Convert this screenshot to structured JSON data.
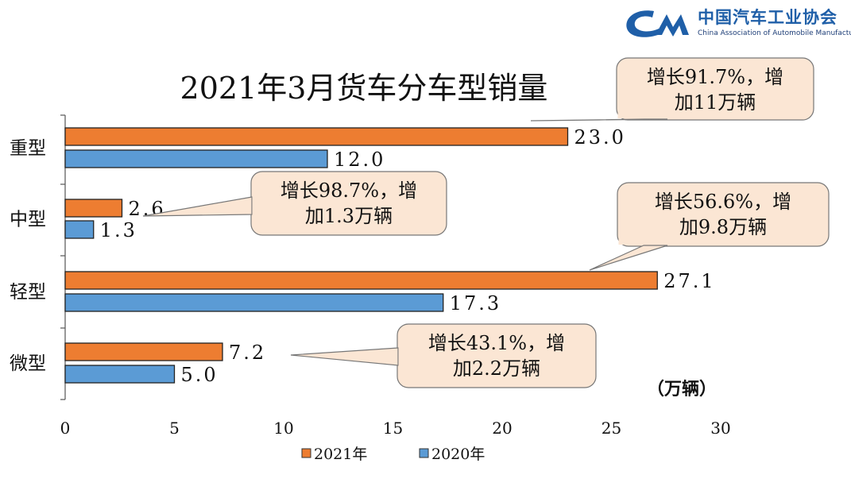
{
  "logo": {
    "name_cn": "中国汽车工业协会",
    "name_en": "China Association of Automobile Manufacturers",
    "brand_color": "#1f5fa8"
  },
  "chart_data": {
    "type": "bar",
    "orientation": "horizontal",
    "title": "2021年3月货车分车型销量",
    "categories": [
      "重型",
      "中型",
      "轻型",
      "微型"
    ],
    "series": [
      {
        "name": "2021年",
        "color": "#ed7d31",
        "values": [
          23.0,
          2.6,
          27.1,
          7.2
        ],
        "labels": [
          "23.0",
          "2.6",
          "27.1",
          "7.2"
        ]
      },
      {
        "name": "2020年",
        "color": "#5b9bd5",
        "values": [
          12.0,
          1.3,
          17.3,
          5.0
        ],
        "labels": [
          "12.0",
          "1.3",
          "17.3",
          "5.0"
        ]
      }
    ],
    "unit": "（万辆）",
    "xlim": [
      0,
      30
    ],
    "xticks": [
      0,
      5,
      10,
      15,
      20,
      25,
      30
    ],
    "grid": false,
    "legend_position": "bottom",
    "annotations": [
      {
        "category": "重型",
        "lines": [
          "增长91.7%，增",
          "加11万辆"
        ]
      },
      {
        "category": "中型",
        "lines": [
          "增长98.7%，增",
          "加1.3万辆"
        ]
      },
      {
        "category": "轻型",
        "lines": [
          "增长56.6%，增",
          "加9.8万辆"
        ]
      },
      {
        "category": "微型",
        "lines": [
          "增长43.1%，增",
          "加2.2万辆"
        ]
      }
    ]
  }
}
